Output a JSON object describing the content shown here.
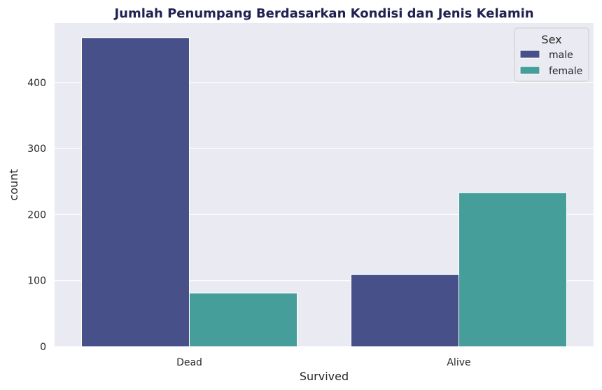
{
  "chart_data": {
    "type": "bar",
    "title": "Jumlah Penumpang Berdasarkan Kondisi dan Jenis Kelamin",
    "xlabel": "Survived",
    "ylabel": "count",
    "categories": [
      "Dead",
      "Alive"
    ],
    "series": [
      {
        "name": "male",
        "values": [
          468,
          109
        ],
        "color": "#48508a"
      },
      {
        "name": "female",
        "values": [
          81,
          233
        ],
        "color": "#459e9a"
      }
    ],
    "ylim": [
      0,
      490
    ],
    "yticks": [
      0,
      100,
      200,
      300,
      400
    ],
    "legend": {
      "title": "Sex",
      "position": "top-right"
    },
    "grid": true,
    "title_color": "#1f2150",
    "background_color": "#eaeaf2"
  }
}
